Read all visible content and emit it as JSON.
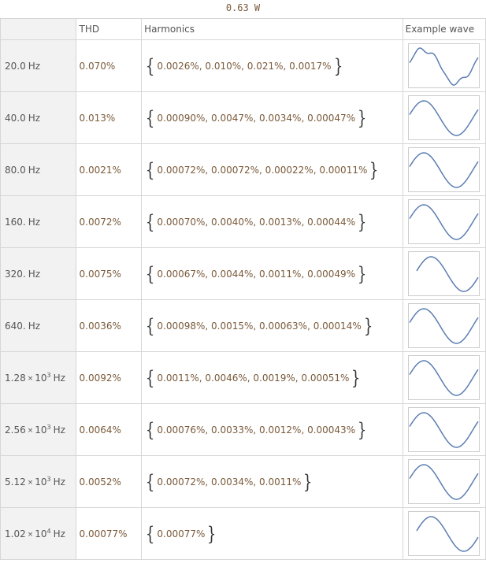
{
  "title": "0.63 W",
  "headers": {
    "col0": "",
    "thd": "THD",
    "harmonics": "Harmonics",
    "wave": "Example wave"
  },
  "rows": [
    {
      "freq_main": "20.0",
      "freq_exp": "",
      "unit": "Hz",
      "thd": "0.070%",
      "harmonics": "0.0026%, 0.010%, 0.021%, 0.0017%",
      "wave_phase": 0.35,
      "wave_distort": true
    },
    {
      "freq_main": "40.0",
      "freq_exp": "",
      "unit": "Hz",
      "thd": "0.013%",
      "harmonics": "0.00090%, 0.0047%, 0.0034%, 0.00047%",
      "wave_phase": 0.4,
      "wave_distort": false
    },
    {
      "freq_main": "80.0",
      "freq_exp": "",
      "unit": "Hz",
      "thd": "0.0021%",
      "harmonics": "0.00072%, 0.00072%, 0.00022%, 0.00011%",
      "wave_phase": 0.4,
      "wave_distort": false
    },
    {
      "freq_main": "160.",
      "freq_exp": "",
      "unit": "Hz",
      "thd": "0.0072%",
      "harmonics": "0.00070%, 0.0040%, 0.0013%, 0.00044%",
      "wave_phase": 0.4,
      "wave_distort": false
    },
    {
      "freq_main": "320.",
      "freq_exp": "",
      "unit": "Hz",
      "thd": "0.0075%",
      "harmonics": "0.00067%, 0.0044%, 0.0011%, 0.00049%",
      "wave_phase": 0.6,
      "wave_distort": false
    },
    {
      "freq_main": "640.",
      "freq_exp": "",
      "unit": "Hz",
      "thd": "0.0036%",
      "harmonics": "0.00098%, 0.0015%, 0.00063%, 0.00014%",
      "wave_phase": 0.4,
      "wave_distort": false
    },
    {
      "freq_main": "1.28",
      "freq_exp": "3",
      "unit": "Hz",
      "thd": "0.0092%",
      "harmonics": "0.0011%, 0.0046%, 0.0019%, 0.00051%",
      "wave_phase": 0.4,
      "wave_distort": false
    },
    {
      "freq_main": "2.56",
      "freq_exp": "3",
      "unit": "Hz",
      "thd": "0.0064%",
      "harmonics": "0.00076%, 0.0033%, 0.0012%, 0.00043%",
      "wave_phase": 0.4,
      "wave_distort": false
    },
    {
      "freq_main": "5.12",
      "freq_exp": "3",
      "unit": "Hz",
      "thd": "0.0052%",
      "harmonics": "0.00072%, 0.0034%, 0.0011%",
      "wave_phase": 0.4,
      "wave_distort": false
    },
    {
      "freq_main": "1.02",
      "freq_exp": "4",
      "unit": "Hz",
      "thd": "0.00077%",
      "harmonics": "0.00077%",
      "wave_phase": 0.6,
      "wave_distort": false
    }
  ],
  "colors": {
    "wave": "#5b7db1",
    "text_value": "#7a5a3a",
    "text_label": "#555555",
    "border": "#d6d6d6",
    "header_bg": "#f2f2f2"
  },
  "times_sign": "×",
  "exp_base": "10"
}
